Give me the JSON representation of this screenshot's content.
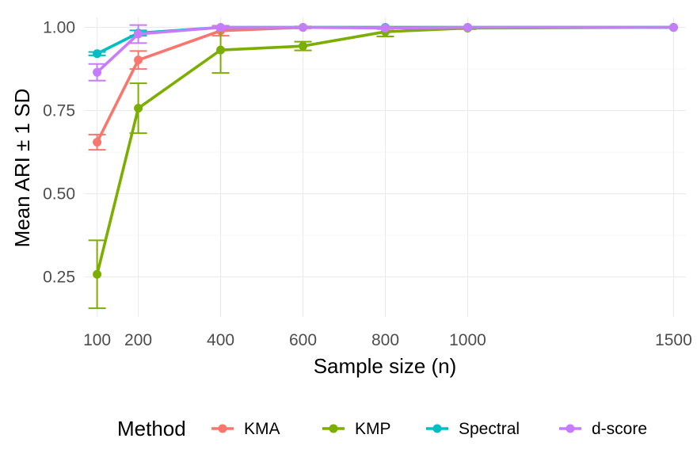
{
  "chart_data": {
    "type": "line",
    "title": "",
    "xlabel": "Sample size (n)",
    "ylabel": "Mean ARI ± 1 SD",
    "x_ticks": [
      100,
      200,
      400,
      600,
      800,
      1000,
      1500
    ],
    "x_tick_labels": [
      "100",
      "200",
      "400",
      "600",
      "800",
      "1000",
      "1500"
    ],
    "y_ticks": [
      0.25,
      0.5,
      0.75,
      1.0
    ],
    "y_tick_labels": [
      "0.25",
      "0.50",
      "0.75",
      "1.00"
    ],
    "xlim": [
      70,
      1530
    ],
    "ylim": [
      0.13,
      1.03
    ],
    "grid": true,
    "legend_title": "Method",
    "legend_position": "bottom",
    "series": [
      {
        "name": "KMA",
        "color": "#F8766D",
        "x": [
          100,
          200,
          400,
          600,
          800,
          1000,
          1500
        ],
        "y": [
          0.655,
          0.902,
          0.99,
          1.0,
          1.0,
          1.0,
          1.0
        ],
        "sd": [
          0.023,
          0.027,
          0.015,
          0.003,
          0.002,
          0.0,
          0.0
        ]
      },
      {
        "name": "KMP",
        "color": "#7CAE00",
        "x": [
          100,
          200,
          400,
          600,
          800,
          1000,
          1500
        ],
        "y": [
          0.258,
          0.757,
          0.932,
          0.944,
          0.987,
          0.998,
          1.0
        ],
        "sd": [
          0.102,
          0.075,
          0.069,
          0.013,
          0.014,
          0.003,
          0.0
        ]
      },
      {
        "name": "Spectral",
        "color": "#00BFC4",
        "x": [
          100,
          200,
          400,
          600,
          800,
          1000,
          1500
        ],
        "y": [
          0.921,
          0.983,
          1.0,
          1.0,
          1.0,
          1.0,
          1.0
        ],
        "sd": [
          0.005,
          0.008,
          0.003,
          0.0,
          0.0,
          0.0,
          0.0
        ]
      },
      {
        "name": "d-score",
        "color": "#C77CFF",
        "x": [
          100,
          200,
          400,
          600,
          800,
          1000,
          1500
        ],
        "y": [
          0.865,
          0.98,
          1.0,
          1.0,
          0.998,
          1.0,
          1.0
        ],
        "sd": [
          0.025,
          0.027,
          0.003,
          0.0,
          0.003,
          0.0,
          0.0
        ]
      }
    ]
  }
}
